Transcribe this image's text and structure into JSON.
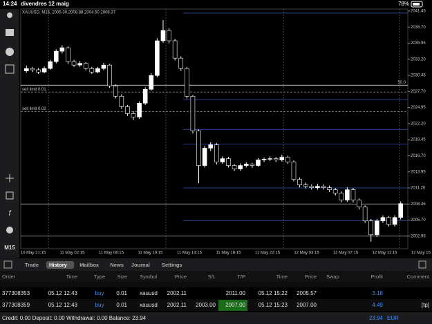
{
  "status_bar": {
    "time": "14:24",
    "date": "divendres 12 maig",
    "battery": "78%"
  },
  "chart": {
    "type": "candlestick",
    "title": "XAUUSD, M15, 2005.30 2008.88 2004.50 2008.37",
    "timeframe": "M15",
    "up_color": "#ffffff",
    "down_color": "#000000",
    "wick_color": "#ffffff",
    "ylim": [
      2000.8,
      2041.8
    ],
    "yticks": [
      {
        "value": 2041.45,
        "label": "2041.45"
      },
      {
        "value": 2038.7,
        "label": "2038.70"
      },
      2035.95,
      {
        "value": 2033.2,
        "label": "2033.20"
      },
      2030.45,
      {
        "value": 2027.7,
        "label": "2027.70"
      },
      2024.95,
      {
        "value": 2022.2,
        "label": "2022.20"
      },
      2019.45,
      {
        "value": 2016.7,
        "label": "2016.70"
      },
      2013.95,
      {
        "value": 2011.2,
        "label": "2011.20"
      },
      2008.45,
      {
        "value": 2005.7,
        "label": "2005.70"
      },
      2002.95
    ],
    "x_labels": [
      "10 May 21:15",
      "11 May 02:15",
      "11 May 06:15",
      "11 May 10:15",
      "11 May 14:15",
      "11 May 18:15",
      "11 May 22:15",
      "12 May 03:15",
      "12 May 07:15",
      "12 May 11:15",
      "12 May 15:15"
    ],
    "candles": [
      [
        2031.2,
        2032.1,
        2030.9,
        2031.62
      ],
      [
        2031.62,
        2031.9,
        2031.0,
        2031.4
      ],
      [
        2031.4,
        2031.7,
        2030.7,
        2031.02
      ],
      [
        2031.02,
        2031.95,
        2030.8,
        2031.62
      ],
      [
        2031.62,
        2033.1,
        2031.4,
        2032.8
      ],
      [
        2032.8,
        2034.9,
        2032.5,
        2034.58
      ],
      [
        2034.58,
        2035.6,
        2034.2,
        2035.17
      ],
      [
        2035.17,
        2035.4,
        2032.4,
        2032.8
      ],
      [
        2032.8,
        2033.1,
        2031.9,
        2032.21
      ],
      [
        2032.21,
        2032.9,
        2031.9,
        2032.5
      ],
      [
        2032.5,
        2032.7,
        2031.3,
        2031.62
      ],
      [
        2031.62,
        2031.9,
        2030.7,
        2031.02
      ],
      [
        2031.02,
        2031.9,
        2030.8,
        2031.62
      ],
      [
        2031.62,
        2032.6,
        2031.3,
        2032.21
      ],
      [
        2032.21,
        2032.4,
        2028.3,
        2028.65
      ],
      [
        2028.65,
        2028.9,
        2026.5,
        2026.88
      ],
      [
        2026.88,
        2027.2,
        2024.7,
        2025.1
      ],
      [
        2025.1,
        2025.4,
        2023.5,
        2023.91
      ],
      [
        2023.91,
        2024.3,
        2022.8,
        2023.32
      ],
      [
        2023.32,
        2026.0,
        2023.0,
        2025.69
      ],
      [
        2025.69,
        2028.4,
        2025.4,
        2028.06
      ],
      [
        2028.06,
        2030.8,
        2027.8,
        2030.43
      ],
      [
        2030.43,
        2036.8,
        2030.1,
        2036.36
      ],
      [
        2036.36,
        2039.9,
        2036.0,
        2038.13
      ],
      [
        2038.13,
        2038.5,
        2035.9,
        2036.36
      ],
      [
        2036.36,
        2036.7,
        2033.0,
        2033.39
      ],
      [
        2033.39,
        2033.7,
        2031.2,
        2031.62
      ],
      [
        2031.62,
        2031.9,
        2026.5,
        2026.88
      ],
      [
        2026.88,
        2027.1,
        2020.5,
        2020.95
      ],
      [
        2020.95,
        2021.2,
        2012.0,
        2015.03
      ],
      [
        2015.03,
        2018.4,
        2014.7,
        2018.0
      ],
      [
        2018.0,
        2019.0,
        2017.5,
        2018.58
      ],
      [
        2018.58,
        2018.9,
        2015.2,
        2015.62
      ],
      [
        2015.62,
        2016.6,
        2015.3,
        2016.21
      ],
      [
        2016.21,
        2016.5,
        2014.7,
        2015.03
      ],
      [
        2015.03,
        2015.3,
        2014.1,
        2014.44
      ],
      [
        2014.44,
        2015.4,
        2014.1,
        2015.03
      ],
      [
        2015.03,
        2015.6,
        2014.7,
        2015.27
      ],
      [
        2015.27,
        2015.5,
        2014.6,
        2015.03
      ],
      [
        2015.03,
        2016.3,
        2014.8,
        2015.98
      ],
      [
        2015.98,
        2016.4,
        2015.6,
        2016.1
      ],
      [
        2016.1,
        2016.6,
        2015.8,
        2016.21
      ],
      [
        2016.21,
        2016.5,
        2015.6,
        2015.98
      ],
      [
        2015.98,
        2016.9,
        2015.7,
        2016.45
      ],
      [
        2016.45,
        2016.7,
        2015.3,
        2015.62
      ],
      [
        2015.62,
        2015.9,
        2012.3,
        2012.66
      ],
      [
        2012.66,
        2013.0,
        2011.3,
        2011.71
      ],
      [
        2011.71,
        2012.1,
        2011.1,
        2011.47
      ],
      [
        2011.47,
        2011.8,
        2010.9,
        2011.24
      ],
      [
        2011.24,
        2011.9,
        2010.9,
        2011.47
      ],
      [
        2011.47,
        2011.8,
        2010.9,
        2011.24
      ],
      [
        2011.24,
        2011.6,
        2010.5,
        2010.89
      ],
      [
        2010.89,
        2011.2,
        2009.9,
        2010.29
      ],
      [
        2010.29,
        2010.6,
        2008.7,
        2009.11
      ],
      [
        2009.11,
        2011.3,
        2008.8,
        2010.89
      ],
      [
        2010.89,
        2011.2,
        2008.7,
        2009.11
      ],
      [
        2009.11,
        2009.4,
        2007.5,
        2007.92
      ],
      [
        2007.92,
        2008.2,
        2005.2,
        2005.55
      ],
      [
        2005.55,
        2005.9,
        2002.0,
        2003.18
      ],
      [
        2003.18,
        2005.9,
        2002.8,
        2005.55
      ],
      [
        2005.55,
        2006.5,
        2005.2,
        2006.14
      ],
      [
        2006.14,
        2006.4,
        2004.6,
        2004.96
      ],
      [
        2004.96,
        2006.5,
        2004.6,
        2006.14
      ],
      [
        2006.14,
        2008.9,
        2005.8,
        2008.51
      ]
    ],
    "levels": [
      {
        "price": 2028.77,
        "label": "50.0",
        "color": "#ffffff"
      },
      {
        "price": 2008.45,
        "color": "#cccccc"
      },
      {
        "price": 2002.95,
        "color": "#cccccc"
      }
    ],
    "orders": [
      {
        "price": 2027.59,
        "label": "sell limit 0.01",
        "color": "#777777"
      },
      {
        "price": 2024.27,
        "label": "sell limit 0.02",
        "color": "#777777"
      }
    ],
    "fib_lines": {
      "color": "#2a3f8f",
      "prices": [
        2041.1,
        2026.3,
        2021.2,
        2018.7,
        2011.2,
        2005.6
      ]
    }
  },
  "tabs": {
    "items": [
      "Trade",
      "History",
      "Mailbox",
      "News",
      "Journal",
      "Settings"
    ],
    "active": 1
  },
  "table": {
    "header": {
      "order": "Order",
      "time": "Time",
      "type": "Type",
      "size": "Size",
      "symbol": "Symbol",
      "price": "Price",
      "sl": "S/L",
      "tp": "T/P",
      "close_time": "Time",
      "close_price": "Price",
      "swap": "Swap",
      "profit": "Profit",
      "comment": "Comment"
    },
    "rows": [
      {
        "order": "377308353",
        "time": "05.12 12:43",
        "type": "buy",
        "size": "0.01",
        "symbol": "xauusd",
        "price": "2002.11",
        "tp": "2011.00",
        "close_time": "05.12 15:22",
        "close_price": "2005.57",
        "profit": "3.18"
      },
      {
        "order": "377308359",
        "time": "05.12 12:43",
        "type": "buy",
        "size": "0.01",
        "symbol": "xauusd",
        "price": "2002.11",
        "sl": "2003.00",
        "tp": "2007.00",
        "close_time": "05.12 15:23",
        "close_price": "2007.00",
        "profit": "4.49",
        "comment": "[tp]"
      }
    ]
  },
  "footer": {
    "summary": "Credit: 0.00 Deposit: 0.00 Withdrawal: 0.00 Balance: 23.94",
    "total": "23.94",
    "currency": "EUR"
  }
}
